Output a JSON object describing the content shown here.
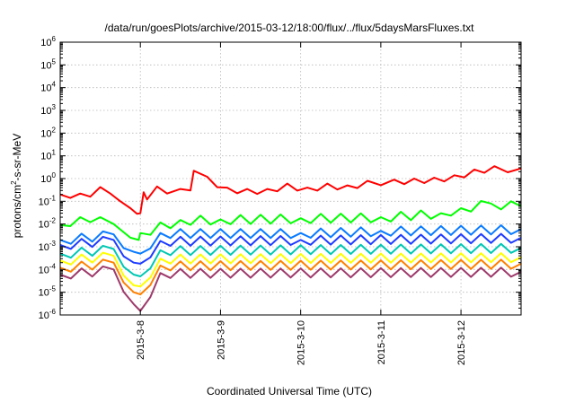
{
  "chart_data": {
    "type": "line",
    "title": "/data/run/goesPlots/archive/2015-03-12/18:00/flux/../flux/5daysMarsFluxes.txt",
    "xlabel": "Coordinated Universal Time (UTC)",
    "ylabel": "protons/cm²-s-sr-MeV",
    "y_scale": "log",
    "ylim": [
      1e-06,
      1000000
    ],
    "xlim": [
      "2015-03-07 00:00",
      "2015-03-12 18:00"
    ],
    "grid": true,
    "x_ticks": [
      {
        "label": "2015-3-8",
        "x": "2015-03-08"
      },
      {
        "label": "2015-3-9",
        "x": "2015-03-09"
      },
      {
        "label": "2015-3-10",
        "x": "2015-03-10"
      },
      {
        "label": "2015-3-11",
        "x": "2015-03-11"
      },
      {
        "label": "2015-3-12",
        "x": "2015-03-12"
      }
    ],
    "y_ticks": [
      {
        "base": "10",
        "exp": "6",
        "value": 1000000
      },
      {
        "base": "10",
        "exp": "5",
        "value": 100000
      },
      {
        "base": "10",
        "exp": "4",
        "value": 10000
      },
      {
        "base": "10",
        "exp": "3",
        "value": 1000
      },
      {
        "base": "10",
        "exp": "2",
        "value": 100
      },
      {
        "base": "10",
        "exp": "1",
        "value": 10
      },
      {
        "base": "10",
        "exp": "0",
        "value": 1
      },
      {
        "base": "10",
        "exp": "-1",
        "value": 0.1
      },
      {
        "base": "10",
        "exp": "-2",
        "value": 0.01
      },
      {
        "base": "10",
        "exp": "-3",
        "value": 0.001
      },
      {
        "base": "10",
        "exp": "-4",
        "value": 0.0001
      },
      {
        "base": "10",
        "exp": "-5",
        "value": 1e-05
      },
      {
        "base": "10",
        "exp": "-6",
        "value": 1e-06
      }
    ],
    "series": [
      {
        "color": "#ff0000",
        "points": [
          [
            "2015-03-07 00:00",
            0.2
          ],
          [
            "2015-03-07 03:00",
            0.14
          ],
          [
            "2015-03-07 06:00",
            0.22
          ],
          [
            "2015-03-07 09:00",
            0.16
          ],
          [
            "2015-03-07 12:00",
            0.42
          ],
          [
            "2015-03-07 15:00",
            0.22
          ],
          [
            "2015-03-07 18:00",
            0.1
          ],
          [
            "2015-03-07 21:00",
            0.05
          ],
          [
            "2015-03-07 23:00",
            0.028
          ],
          [
            "2015-03-08 00:00",
            0.03
          ],
          [
            "2015-03-08 01:00",
            0.25
          ],
          [
            "2015-03-08 02:00",
            0.12
          ],
          [
            "2015-03-08 05:00",
            0.45
          ],
          [
            "2015-03-08 08:00",
            0.22
          ],
          [
            "2015-03-08 12:00",
            0.35
          ],
          [
            "2015-03-08 15:00",
            0.3
          ],
          [
            "2015-03-08 16:00",
            2.2
          ],
          [
            "2015-03-08 20:00",
            1.2
          ],
          [
            "2015-03-09 02:00",
            0.4
          ],
          [
            "2015-03-09 08:00",
            0.35
          ],
          [
            "2015-03-09 14:00",
            0.35
          ],
          [
            "2015-03-09 20:00",
            0.6
          ],
          [
            "2015-03-10 02:00",
            0.4
          ],
          [
            "2015-03-10 08:00",
            0.6
          ],
          [
            "2015-03-10 14:00",
            0.5
          ],
          [
            "2015-03-10 20:00",
            0.8
          ],
          [
            "2015-03-11 04:00",
            0.9
          ],
          [
            "2015-03-11 10:00",
            1.0
          ],
          [
            "2015-03-11 16:00",
            1.1
          ],
          [
            "2015-03-11 22:00",
            1.4
          ],
          [
            "2015-03-12 04:00",
            2.5
          ],
          [
            "2015-03-12 10:00",
            3.5
          ],
          [
            "2015-03-12 18:00",
            2.8
          ]
        ]
      },
      {
        "color": "#00ff00",
        "points": [
          [
            "2015-03-07 00:00",
            0.009
          ],
          [
            "2015-03-07 06:00",
            0.02
          ],
          [
            "2015-03-07 12:00",
            0.02
          ],
          [
            "2015-03-07 16:00",
            0.01
          ],
          [
            "2015-03-07 21:00",
            0.0025
          ],
          [
            "2015-03-07 23:30",
            0.002
          ],
          [
            "2015-03-08 00:00",
            0.004
          ],
          [
            "2015-03-08 12:00",
            0.015
          ],
          [
            "2015-03-09 00:00",
            0.016
          ],
          [
            "2015-03-10 00:00",
            0.018
          ],
          [
            "2015-03-11 00:00",
            0.02
          ],
          [
            "2015-03-11 18:00",
            0.03
          ],
          [
            "2015-03-12 00:00",
            0.05
          ],
          [
            "2015-03-12 09:00",
            0.08
          ],
          [
            "2015-03-12 18:00",
            0.06
          ]
        ]
      },
      {
        "color": "#0a7bff",
        "points": [
          [
            "2015-03-07 00:00",
            0.002
          ],
          [
            "2015-03-07 16:00",
            0.0035
          ],
          [
            "2015-03-07 22:00",
            0.0006
          ],
          [
            "2015-03-08 00:00",
            0.0005
          ],
          [
            "2015-03-08 06:00",
            0.004
          ],
          [
            "2015-03-10 00:00",
            0.004
          ],
          [
            "2015-03-11 00:00",
            0.005
          ],
          [
            "2015-03-12 18:00",
            0.006
          ]
        ]
      },
      {
        "color": "#1e3cff",
        "points": [
          [
            "2015-03-07 00:00",
            0.0012
          ],
          [
            "2015-03-07 16:00",
            0.002
          ],
          [
            "2015-03-07 22:00",
            0.0002
          ],
          [
            "2015-03-08 00:00",
            0.00018
          ],
          [
            "2015-03-08 06:00",
            0.0018
          ],
          [
            "2015-03-10 00:00",
            0.002
          ],
          [
            "2015-03-12 18:00",
            0.0025
          ]
        ]
      },
      {
        "color": "#00c8b4",
        "points": [
          [
            "2015-03-07 00:00",
            0.0005
          ],
          [
            "2015-03-07 16:00",
            0.0008
          ],
          [
            "2015-03-07 22:00",
            6e-05
          ],
          [
            "2015-03-08 00:00",
            5e-05
          ],
          [
            "2015-03-08 06:00",
            0.0007
          ],
          [
            "2015-03-12 18:00",
            0.0009
          ]
        ]
      },
      {
        "color": "#ffff00",
        "points": [
          [
            "2015-03-07 00:00",
            0.00025
          ],
          [
            "2015-03-07 16:00",
            0.0004
          ],
          [
            "2015-03-07 22:00",
            2e-05
          ],
          [
            "2015-03-08 00:00",
            1.8e-05
          ],
          [
            "2015-03-08 06:00",
            0.0003
          ],
          [
            "2015-03-12 18:00",
            0.00035
          ]
        ]
      },
      {
        "color": "#ff8000",
        "points": [
          [
            "2015-03-07 00:00",
            0.00012
          ],
          [
            "2015-03-07 16:00",
            0.0002
          ],
          [
            "2015-03-07 22:00",
            1e-05
          ],
          [
            "2015-03-08 00:00",
            8e-06
          ],
          [
            "2015-03-08 06:00",
            0.00015
          ],
          [
            "2015-03-12 18:00",
            0.00018
          ]
        ]
      },
      {
        "color": "#9e3a6b",
        "points": [
          [
            "2015-03-07 00:00",
            6e-05
          ],
          [
            "2015-03-07 16:00",
            0.0001
          ],
          [
            "2015-03-07 22:00",
            3e-06
          ],
          [
            "2015-03-08 00:00",
            1.5e-06
          ],
          [
            "2015-03-08 06:00",
            7e-05
          ],
          [
            "2015-03-12 18:00",
            8e-05
          ]
        ]
      }
    ]
  }
}
